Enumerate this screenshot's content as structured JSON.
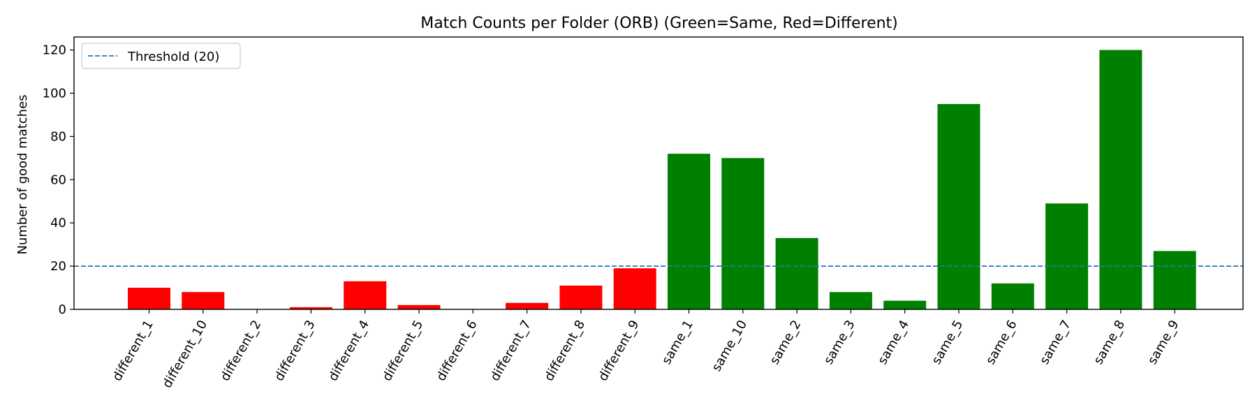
{
  "chart_data": {
    "type": "bar",
    "title": "Match Counts per Folder (ORB) (Green=Same, Red=Different)",
    "xlabel": "",
    "ylabel": "Number of good matches",
    "categories": [
      "different_1",
      "different_10",
      "different_2",
      "different_3",
      "different_4",
      "different_5",
      "different_6",
      "different_7",
      "different_8",
      "different_9",
      "same_1",
      "same_10",
      "same_2",
      "same_3",
      "same_4",
      "same_5",
      "same_6",
      "same_7",
      "same_8",
      "same_9"
    ],
    "values": [
      10,
      8,
      0,
      1,
      13,
      2,
      0,
      3,
      11,
      19,
      72,
      70,
      33,
      8,
      4,
      95,
      12,
      49,
      120,
      27
    ],
    "bar_colors": [
      "#ff0000",
      "#ff0000",
      "#ff0000",
      "#ff0000",
      "#ff0000",
      "#ff0000",
      "#ff0000",
      "#ff0000",
      "#ff0000",
      "#ff0000",
      "#008000",
      "#008000",
      "#008000",
      "#008000",
      "#008000",
      "#008000",
      "#008000",
      "#008000",
      "#008000",
      "#008000"
    ],
    "ylim": [
      0,
      126
    ],
    "yticks": [
      0,
      20,
      40,
      60,
      80,
      100,
      120
    ],
    "threshold": {
      "value": 20,
      "label": "Threshold (20)",
      "color": "#1f77b4",
      "style": "dashed"
    },
    "legend": {
      "placement": "top-left",
      "entries": [
        "Threshold (20)"
      ]
    },
    "grid": false
  }
}
